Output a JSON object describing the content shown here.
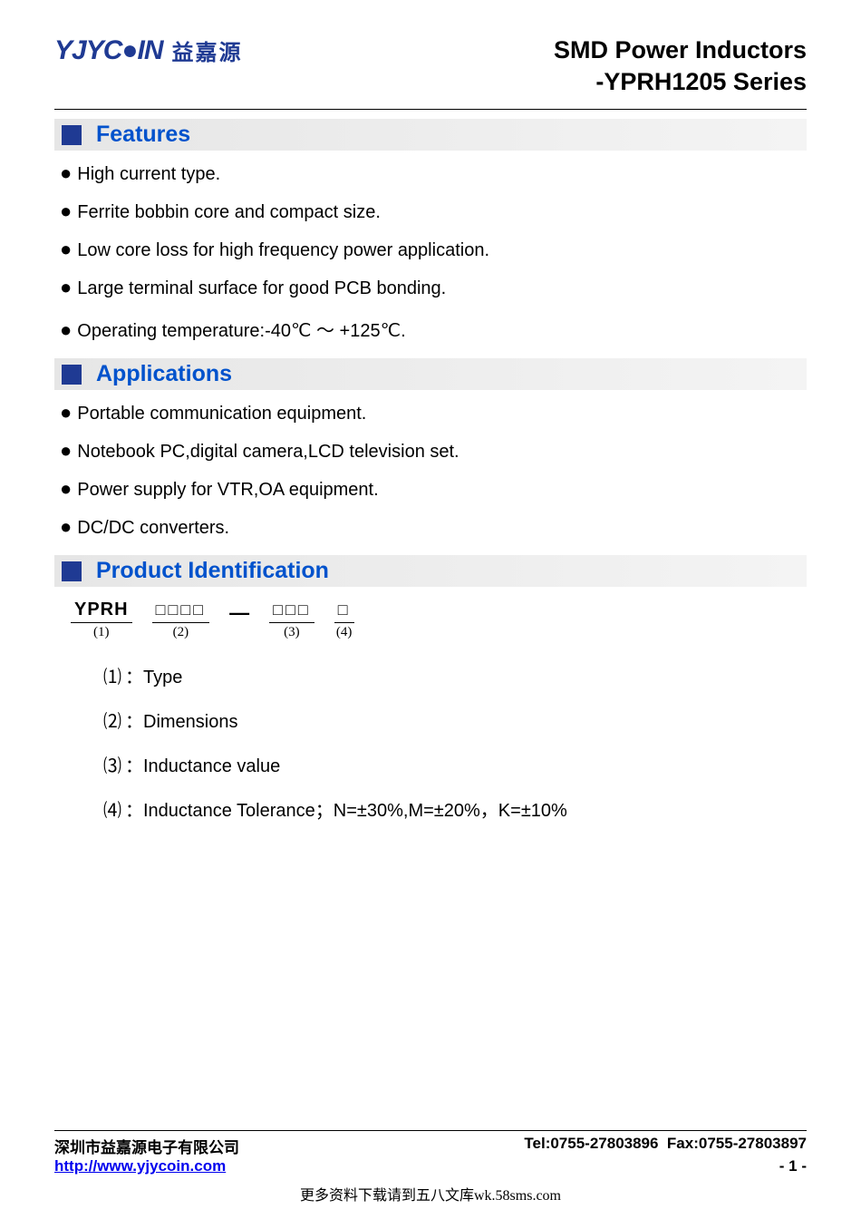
{
  "logo": {
    "en": "YJYC●IN",
    "cn": "益嘉源"
  },
  "title": {
    "line1": "SMD Power Inductors",
    "line2": "-YPRH1205 Series"
  },
  "sections": {
    "features": {
      "title": "Features"
    },
    "applications": {
      "title": "Applications"
    },
    "productId": {
      "title": "Product Identification"
    }
  },
  "features_items": [
    "High current type.",
    "Ferrite bobbin core and compact size.",
    "Low core loss for high frequency power application.",
    "Large terminal surface for good PCB bonding.",
    "Operating temperature:-40℃ ～ +125℃."
  ],
  "applications_items": [
    "Portable communication equipment.",
    "Notebook PC,digital camera,LCD television set.",
    "Power supply for VTR,OA equipment.",
    "DC/DC converters."
  ],
  "product_id": {
    "groups": [
      {
        "top": "YPRH",
        "num": "(1)",
        "boxes": false
      },
      {
        "top": "□□□□",
        "num": "(2)",
        "boxes": true
      },
      {
        "top": "□□□",
        "num": "(3)",
        "boxes": true
      },
      {
        "top": "□",
        "num": "(4)",
        "boxes": true
      }
    ],
    "dash_after_index": 1,
    "legend": [
      {
        "num": "⑴",
        "text": "：Type"
      },
      {
        "num": "⑵",
        "text": "：Dimensions"
      },
      {
        "num": "⑶",
        "text": "：Inductance value"
      },
      {
        "num": "⑷",
        "text": "：Inductance Tolerance；N=±30%,M=±20%，K=±10%"
      }
    ]
  },
  "footer": {
    "company": "深圳市益嘉源电子有限公司",
    "tel": "Tel:0755-27803896",
    "fax": "Fax:0755-27803897",
    "url": "http://www.yjycoin.com",
    "page": "- 1 -"
  },
  "watermark": "更多资料下载请到五八文库wk.58sms.com",
  "colors": {
    "brand_blue": "#1f3a93",
    "heading_blue": "#0052cc",
    "section_bg": "#e6e6e6",
    "link": "#0000ee"
  }
}
